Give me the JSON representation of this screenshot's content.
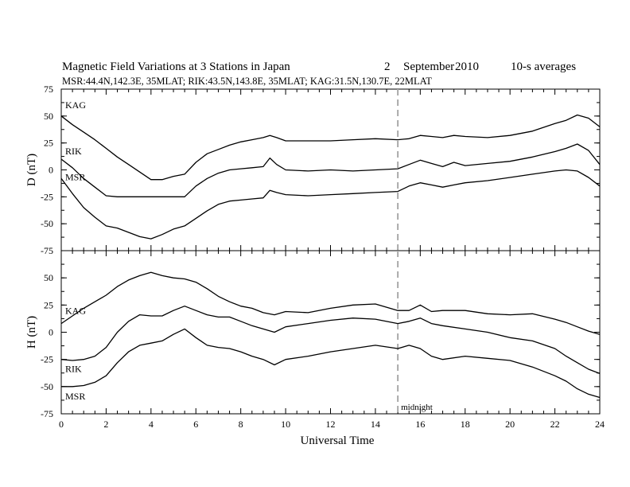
{
  "title": {
    "main": "Magnetic Field Variations at 3 Stations in Japan",
    "day": "2",
    "month": "September",
    "year": "2010",
    "averaging": "10-s averages"
  },
  "subtitle": "MSR:44.4N,142.3E, 35MLAT;   RIK:43.5N,143.8E, 35MLAT;   KAG:31.5N,130.7E, 22MLAT",
  "chart_data": [
    {
      "type": "line",
      "panel": "top",
      "ylabel": "D (nT)",
      "xlim": [
        0,
        24
      ],
      "ylim": [
        -75,
        75
      ],
      "yticks": [
        75,
        50,
        25,
        0,
        -25,
        -50,
        -75
      ],
      "series": [
        {
          "name": "KAG",
          "x": [
            0,
            0.5,
            1,
            1.5,
            2,
            2.5,
            3,
            3.5,
            4,
            4.5,
            5,
            5.5,
            6,
            6.5,
            7,
            7.5,
            8,
            8.5,
            9,
            9.3,
            9.6,
            10,
            11,
            12,
            13,
            14,
            15,
            15.5,
            16,
            16.5,
            17,
            17.5,
            18,
            19,
            20,
            21,
            22,
            22.5,
            23,
            23.5,
            24
          ],
          "y": [
            50,
            42,
            35,
            28,
            20,
            12,
            5,
            -2,
            -9,
            -9,
            -6,
            -4,
            7,
            15,
            19,
            23,
            26,
            28,
            30,
            32,
            30,
            27,
            27,
            27,
            28,
            29,
            28,
            29,
            32,
            31,
            30,
            32,
            31,
            30,
            32,
            36,
            43,
            46,
            51,
            48,
            40
          ]
        },
        {
          "name": "RIK",
          "x": [
            0,
            0.5,
            1,
            1.5,
            2,
            2.5,
            3,
            3.5,
            4,
            4.5,
            5,
            5.5,
            6,
            6.5,
            7,
            7.5,
            8,
            8.5,
            9,
            9.3,
            9.6,
            10,
            11,
            12,
            13,
            14,
            15,
            15.5,
            16,
            16.5,
            17,
            17.5,
            18,
            19,
            20,
            21,
            22,
            22.5,
            23,
            23.5,
            24
          ],
          "y": [
            10,
            2,
            -8,
            -16,
            -24,
            -25,
            -25,
            -25,
            -25,
            -25,
            -25,
            -25,
            -15,
            -8,
            -3,
            0,
            1,
            2,
            3,
            11,
            5,
            0,
            -1,
            0,
            -1,
            0,
            1,
            5,
            9,
            6,
            3,
            7,
            4,
            6,
            8,
            12,
            17,
            20,
            24,
            18,
            5
          ]
        },
        {
          "name": "MSR",
          "x": [
            0,
            0.5,
            1,
            1.5,
            2,
            2.5,
            3,
            3.5,
            4,
            4.5,
            5,
            5.5,
            6,
            6.5,
            7,
            7.5,
            8,
            8.5,
            9,
            9.3,
            9.6,
            10,
            11,
            12,
            13,
            14,
            15,
            15.5,
            16,
            16.5,
            17,
            17.5,
            18,
            19,
            20,
            21,
            22,
            22.5,
            23,
            23.5,
            24
          ],
          "y": [
            -8,
            -22,
            -35,
            -44,
            -52,
            -54,
            -58,
            -62,
            -64,
            -60,
            -55,
            -52,
            -45,
            -38,
            -32,
            -29,
            -28,
            -27,
            -26,
            -19,
            -21,
            -23,
            -24,
            -23,
            -22,
            -21,
            -20,
            -15,
            -12,
            -14,
            -16,
            -14,
            -12,
            -10,
            -7,
            -4,
            -1,
            0,
            -1,
            -7,
            -15
          ]
        }
      ]
    },
    {
      "type": "line",
      "panel": "bottom",
      "ylabel": "H (nT)",
      "xlabel": "Universal Time",
      "xlim": [
        0,
        24
      ],
      "ylim": [
        -75,
        75
      ],
      "xticks": [
        0,
        2,
        4,
        6,
        8,
        10,
        12,
        14,
        16,
        18,
        20,
        22,
        24
      ],
      "yticks": [
        50,
        25,
        0,
        -25,
        -50,
        -75
      ],
      "series": [
        {
          "name": "KAG",
          "x": [
            0,
            0.5,
            1,
            1.5,
            2,
            2.5,
            3,
            3.5,
            4,
            4.5,
            5,
            5.5,
            6,
            6.5,
            7,
            7.5,
            8,
            8.5,
            9,
            9.5,
            10,
            11,
            12,
            13,
            14,
            15,
            15.5,
            16,
            16.5,
            17,
            18,
            19,
            20,
            21,
            22,
            22.5,
            23,
            23.5,
            24
          ],
          "y": [
            8,
            15,
            22,
            28,
            34,
            42,
            48,
            52,
            55,
            52,
            50,
            49,
            46,
            40,
            33,
            28,
            24,
            22,
            18,
            16,
            19,
            18,
            22,
            25,
            26,
            20,
            20,
            25,
            19,
            20,
            20,
            17,
            16,
            17,
            12,
            9,
            5,
            1,
            -2
          ]
        },
        {
          "name": "RIK",
          "x": [
            0,
            0.5,
            1,
            1.5,
            2,
            2.5,
            3,
            3.5,
            4,
            4.5,
            5,
            5.5,
            6,
            6.5,
            7,
            7.5,
            8,
            8.5,
            9,
            9.5,
            10,
            11,
            12,
            13,
            14,
            15,
            15.5,
            16,
            16.5,
            17,
            18,
            19,
            20,
            21,
            22,
            22.5,
            23,
            23.5,
            24
          ],
          "y": [
            -25,
            -26,
            -25,
            -22,
            -14,
            0,
            10,
            16,
            15,
            15,
            20,
            24,
            20,
            16,
            14,
            14,
            10,
            6,
            3,
            0,
            5,
            8,
            11,
            13,
            12,
            8,
            10,
            13,
            8,
            6,
            3,
            0,
            -5,
            -8,
            -15,
            -22,
            -28,
            -34,
            -38
          ]
        },
        {
          "name": "MSR",
          "x": [
            0,
            0.5,
            1,
            1.5,
            2,
            2.5,
            3,
            3.5,
            4,
            4.5,
            5,
            5.5,
            6,
            6.5,
            7,
            7.5,
            8,
            8.5,
            9,
            9.5,
            10,
            11,
            12,
            13,
            14,
            15,
            15.5,
            16,
            16.5,
            17,
            18,
            19,
            20,
            21,
            22,
            22.5,
            23,
            23.5,
            24
          ],
          "y": [
            -50,
            -50,
            -49,
            -46,
            -40,
            -28,
            -18,
            -12,
            -10,
            -8,
            -2,
            3,
            -5,
            -12,
            -14,
            -15,
            -18,
            -22,
            -25,
            -30,
            -25,
            -22,
            -18,
            -15,
            -12,
            -15,
            -12,
            -15,
            -22,
            -25,
            -22,
            -24,
            -26,
            -32,
            -40,
            -45,
            -52,
            -57,
            -60
          ]
        }
      ]
    }
  ],
  "annotations": {
    "midnight_hour": 15,
    "midnight_label": "midnight"
  }
}
